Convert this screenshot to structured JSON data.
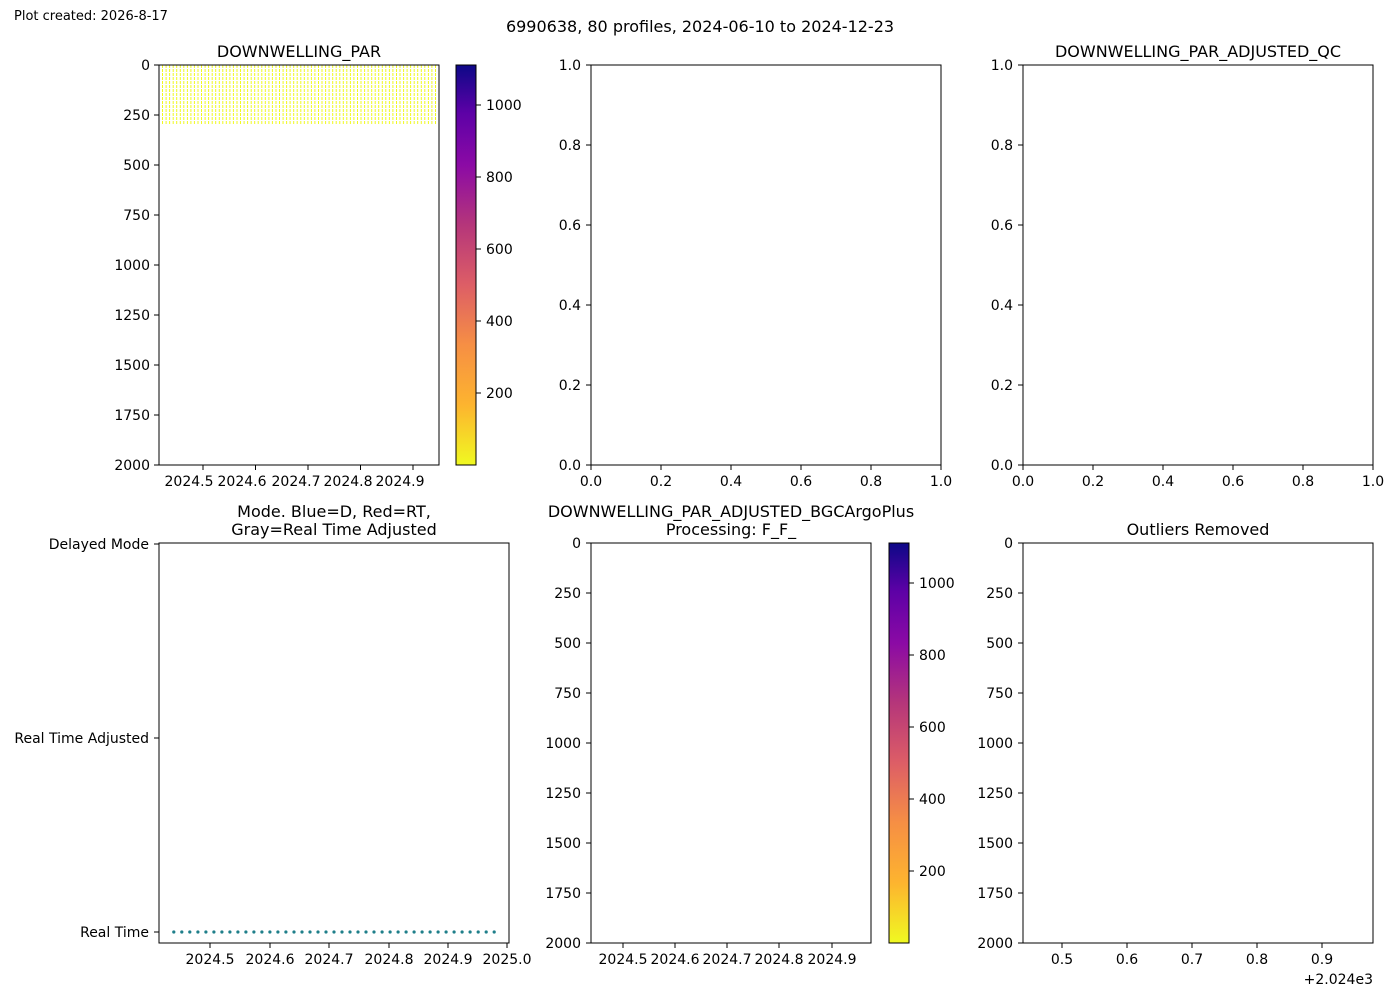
{
  "created_label": "Plot created: 2026-8-17",
  "suptitle": "6990638, 80 profiles, 2024-06-10 to 2024-12-23",
  "colors": {
    "par_yellow": "#f0f921",
    "mode_dot": "#1f7f8a",
    "axis": "#000000"
  },
  "colorbar_ticks": [
    "200",
    "400",
    "600",
    "800",
    "1000"
  ],
  "chart_data": [
    {
      "id": "p1",
      "type": "heatmap",
      "title": "DOWNWELLING_PAR",
      "x_ticks": [
        "2024.5",
        "2024.6",
        "2024.7",
        "2024.8",
        "2024.9"
      ],
      "y_ticks": [
        "0",
        "250",
        "500",
        "750",
        "1000",
        "1250",
        "1500",
        "1750",
        "2000"
      ],
      "xlim": [
        2024.44,
        2024.98
      ],
      "ylim": [
        2000,
        0
      ],
      "profiles": {
        "count": 80,
        "x_start": 2024.44,
        "x_end": 2024.98,
        "depth_max": 300
      },
      "colorbar": {
        "cmap": "plasma_r",
        "range": [
          0,
          1100
        ]
      }
    },
    {
      "id": "p2",
      "type": "scatter",
      "title": "",
      "x_ticks": [
        "0.0",
        "0.2",
        "0.4",
        "0.6",
        "0.8",
        "1.0"
      ],
      "y_ticks": [
        "0.0",
        "0.2",
        "0.4",
        "0.6",
        "0.8",
        "1.0"
      ],
      "xlim": [
        0,
        1
      ],
      "ylim": [
        0,
        1
      ]
    },
    {
      "id": "p3",
      "type": "scatter",
      "title": "DOWNWELLING_PAR_ADJUSTED_QC",
      "x_ticks": [
        "0.0",
        "0.2",
        "0.4",
        "0.6",
        "0.8",
        "1.0"
      ],
      "y_ticks": [
        "0.0",
        "0.2",
        "0.4",
        "0.6",
        "0.8",
        "1.0"
      ],
      "xlim": [
        0,
        1
      ],
      "ylim": [
        0,
        1
      ]
    },
    {
      "id": "p4",
      "type": "scatter",
      "title_line1": "Mode. Blue=D, Red=RT,",
      "title_line2": "Gray=Real Time Adjusted",
      "x_ticks": [
        "2024.5",
        "2024.6",
        "2024.7",
        "2024.8",
        "2024.9",
        "2025.0"
      ],
      "y_categories": [
        "Delayed Mode",
        "Real Time Adjusted",
        "Real Time"
      ],
      "xlim": [
        2024.415,
        2025.005
      ],
      "points": {
        "count": 41,
        "x_start": 2024.44,
        "x_end": 2024.98,
        "category": "Real Time"
      }
    },
    {
      "id": "p5",
      "type": "heatmap",
      "title_line1": "DOWNWELLING_PAR_ADJUSTED_BGCArgoPlus",
      "title_line2": "Processing: F_F_",
      "x_ticks": [
        "2024.5",
        "2024.6",
        "2024.7",
        "2024.8",
        "2024.9"
      ],
      "y_ticks": [
        "0",
        "250",
        "500",
        "750",
        "1000",
        "1250",
        "1500",
        "1750",
        "2000"
      ],
      "xlim": [
        2024.44,
        2024.98
      ],
      "ylim": [
        2000,
        0
      ],
      "colorbar": {
        "cmap": "plasma_r",
        "range": [
          0,
          1100
        ]
      }
    },
    {
      "id": "p6",
      "type": "scatter",
      "title": "Outliers Removed",
      "x_ticks": [
        "0.5",
        "0.6",
        "0.7",
        "0.8",
        "0.9"
      ],
      "y_ticks": [
        "0",
        "250",
        "500",
        "750",
        "1000",
        "1250",
        "1500",
        "1750",
        "2000"
      ],
      "xlim": [
        0.44,
        0.98
      ],
      "ylim": [
        2000,
        0
      ],
      "offset_label": "+2.024e3"
    }
  ]
}
